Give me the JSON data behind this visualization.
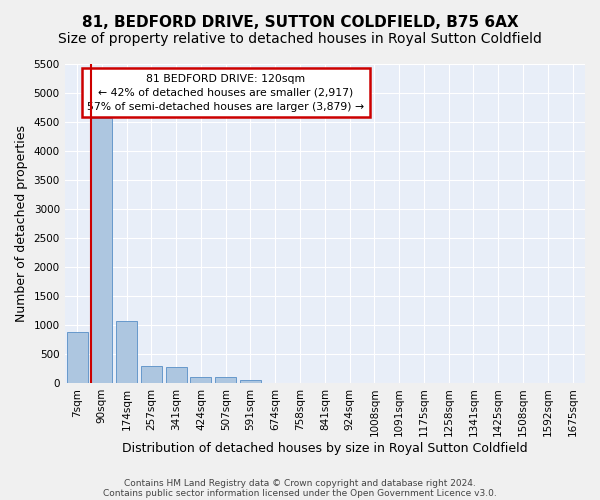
{
  "title": "81, BEDFORD DRIVE, SUTTON COLDFIELD, B75 6AX",
  "subtitle": "Size of property relative to detached houses in Royal Sutton Coldfield",
  "xlabel": "Distribution of detached houses by size in Royal Sutton Coldfield",
  "ylabel": "Number of detached properties",
  "footnote1": "Contains HM Land Registry data © Crown copyright and database right 2024.",
  "footnote2": "Contains public sector information licensed under the Open Government Licence v3.0.",
  "bin_labels": [
    "7sqm",
    "90sqm",
    "174sqm",
    "257sqm",
    "341sqm",
    "424sqm",
    "507sqm",
    "591sqm",
    "674sqm",
    "758sqm",
    "841sqm",
    "924sqm",
    "1008sqm",
    "1091sqm",
    "1175sqm",
    "1258sqm",
    "1341sqm",
    "1425sqm",
    "1508sqm",
    "1592sqm",
    "1675sqm"
  ],
  "bar_values": [
    880,
    4560,
    1060,
    290,
    280,
    100,
    95,
    55,
    0,
    0,
    0,
    0,
    0,
    0,
    0,
    0,
    0,
    0,
    0,
    0,
    0
  ],
  "bar_color": "#adc6e0",
  "bar_edge_color": "#6699cc",
  "background_color": "#e8eef8",
  "grid_color": "#ffffff",
  "annotation_text1": "81 BEDFORD DRIVE: 120sqm",
  "annotation_text2": "← 42% of detached houses are smaller (2,917)",
  "annotation_text3": "57% of semi-detached houses are larger (3,879) →",
  "annotation_box_color": "#cc0000",
  "vline_color": "#cc0000",
  "ylim_max": 5500,
  "yticks": [
    0,
    500,
    1000,
    1500,
    2000,
    2500,
    3000,
    3500,
    4000,
    4500,
    5000,
    5500
  ],
  "title_fontsize": 11,
  "subtitle_fontsize": 10,
  "axis_label_fontsize": 9,
  "tick_fontsize": 7.5,
  "footer_fontsize": 6.5
}
